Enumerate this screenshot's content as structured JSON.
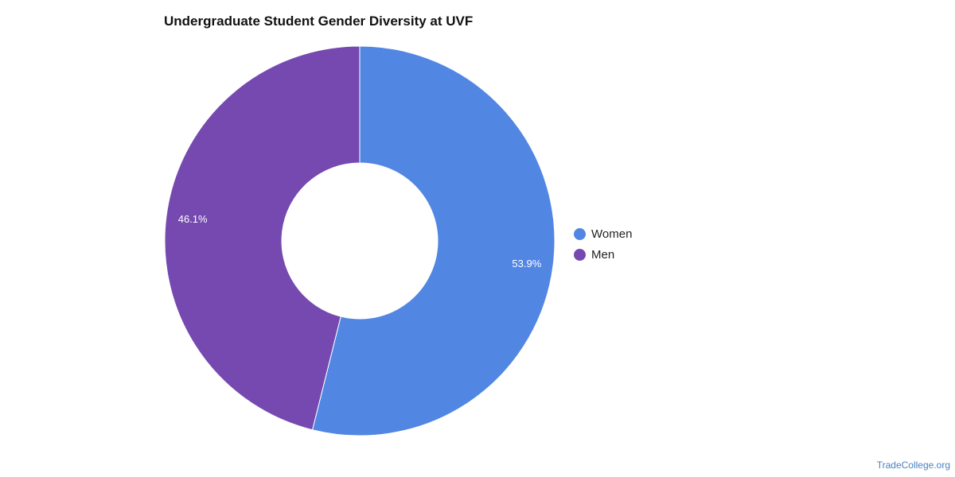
{
  "chart_data": {
    "type": "pie",
    "title": "Undergraduate Student Gender Diversity at UVF",
    "donut": true,
    "categories": [
      "Women",
      "Men"
    ],
    "values": [
      53.9,
      46.1
    ],
    "value_labels": [
      "53.9%",
      "46.1%"
    ],
    "colors": [
      "#5286e3",
      "#7549b0"
    ],
    "legend_position": "right"
  },
  "watermark": "TradeCollege.org"
}
